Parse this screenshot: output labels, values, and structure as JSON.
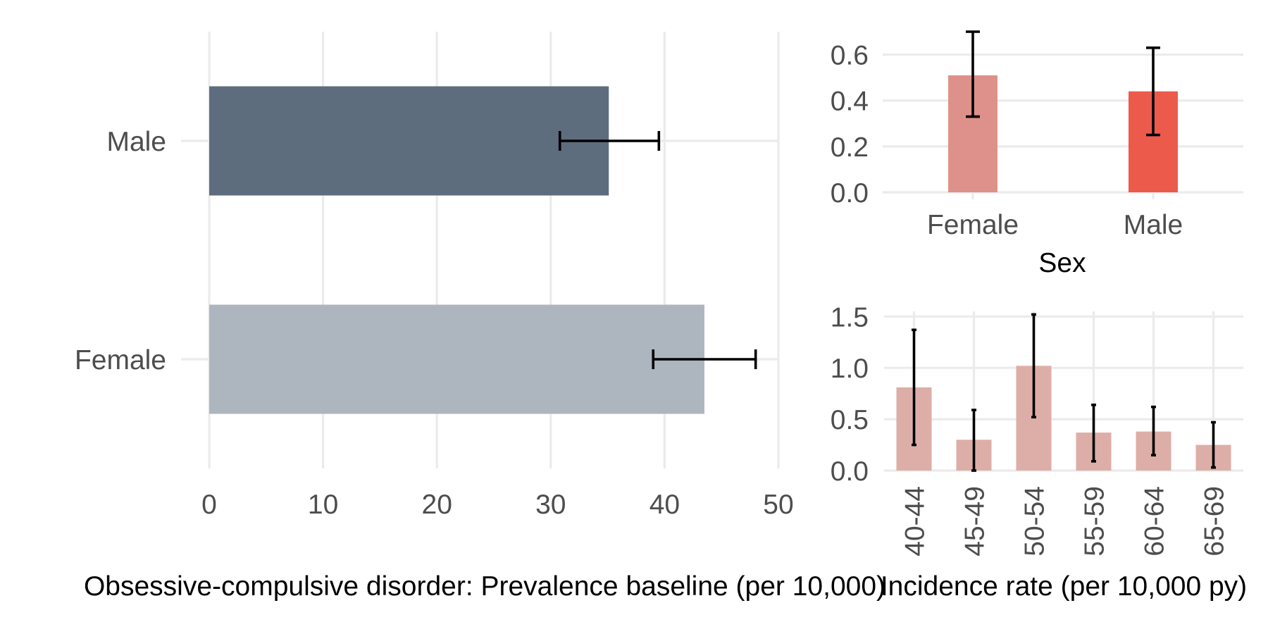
{
  "chart_data": [
    {
      "type": "bar",
      "orientation": "horizontal",
      "title": "",
      "xlabel": "Obsessive-compulsive disorder: Prevalence baseline (per 10,000)",
      "ylabel": "",
      "categories": [
        "Male",
        "Female"
      ],
      "values": [
        35.1,
        43.5
      ],
      "error_low": [
        30.8,
        39.0
      ],
      "error_high": [
        39.5,
        48.0
      ],
      "colors": [
        "#5d6d7e",
        "#adb5bf"
      ],
      "xlim": [
        0,
        50
      ],
      "x_ticks": [
        "0",
        "10",
        "20",
        "30",
        "40",
        "50"
      ],
      "grid": true,
      "legend": "none"
    },
    {
      "type": "bar",
      "title": "",
      "xlabel": "Sex",
      "ylabel": "",
      "categories": [
        "Female",
        "Male"
      ],
      "values": [
        0.51,
        0.44
      ],
      "error_low": [
        0.33,
        0.25
      ],
      "error_high": [
        0.7,
        0.63
      ],
      "colors": [
        "#de918b",
        "#ec5a4c"
      ],
      "ylim": [
        0,
        0.7
      ],
      "y_ticks": [
        "0.0",
        "0.2",
        "0.4",
        "0.6"
      ],
      "grid": true,
      "legend": "none"
    },
    {
      "type": "bar",
      "title": "",
      "xlabel": "Incidence rate (per 10,000 py)",
      "ylabel": "",
      "categories": [
        "40-44",
        "45-49",
        "50-54",
        "55-59",
        "60-64",
        "65-69"
      ],
      "values": [
        0.81,
        0.3,
        1.02,
        0.37,
        0.38,
        0.25
      ],
      "error_low": [
        0.25,
        0.0,
        0.52,
        0.09,
        0.15,
        0.03
      ],
      "error_high": [
        1.37,
        0.59,
        1.52,
        0.64,
        0.62,
        0.47
      ],
      "colors": [
        "#ddaea7"
      ],
      "ylim": [
        0,
        1.55
      ],
      "y_ticks": [
        "0.0",
        "0.5",
        "1.0",
        "1.5"
      ],
      "grid": true,
      "legend": "none"
    }
  ]
}
